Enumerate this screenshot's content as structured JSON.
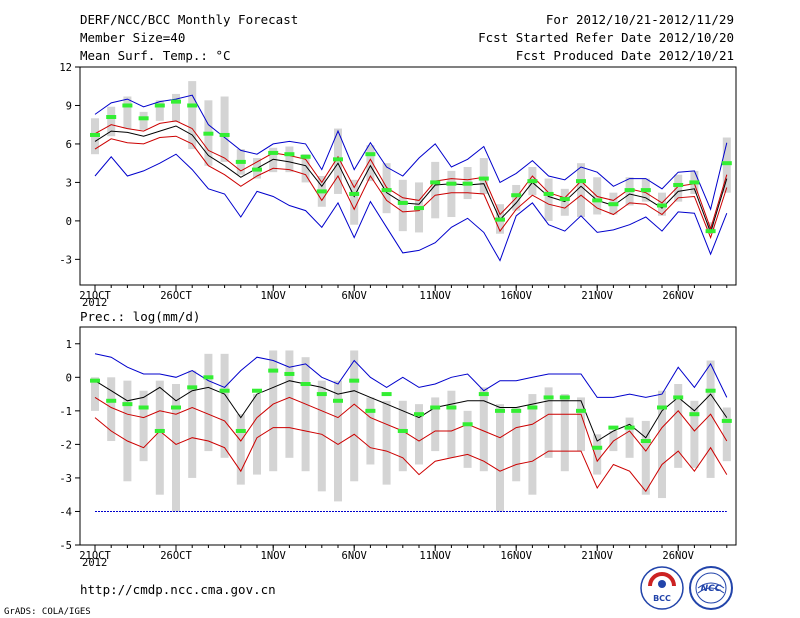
{
  "header": {
    "title": "DERF/NCC/BCC Monthly Forecast",
    "member_size": "Member Size=40",
    "variable": "Mean Surf. Temp.: °C",
    "period": "For 2012/10/21-2012/11/29",
    "started": "Fcst Started Refer Date 2012/10/20",
    "produced": "Fcst Produced Date 2012/10/21"
  },
  "footer": {
    "url": "http://cmdp.ncc.cma.gov.cn",
    "credit": "GrADS: COLA/IGES",
    "logo_bcc": "BCC",
    "logo_ncc": "NCC"
  },
  "chart_data": [
    {
      "type": "line",
      "title": "Mean Surf. Temp.: °C",
      "xlabel": "",
      "ylabel": "",
      "ylim": [
        -5,
        12
      ],
      "yticks": [
        12,
        9,
        6,
        3,
        0,
        -3
      ],
      "xtick_labels": [
        "21OCT",
        "26OCT",
        "1NOV",
        "6NOV",
        "11NOV",
        "16NOV",
        "21NOV",
        "26NOV"
      ],
      "xtick_days": [
        0,
        5,
        11,
        16,
        21,
        26,
        31,
        36
      ],
      "year_label": "2012",
      "x_days": [
        0,
        1,
        2,
        3,
        4,
        5,
        6,
        7,
        8,
        9,
        10,
        11,
        12,
        13,
        14,
        15,
        16,
        17,
        18,
        19,
        20,
        21,
        22,
        23,
        24,
        25,
        26,
        27,
        28,
        29,
        30,
        31,
        32,
        33,
        34,
        35,
        36,
        37,
        38,
        39
      ],
      "series": [
        {
          "name": "max",
          "color": "#0000cc",
          "values": [
            8.3,
            9.2,
            9.5,
            8.9,
            9.3,
            9.5,
            9.8,
            7.5,
            6.5,
            5.5,
            5.2,
            6,
            6.2,
            6,
            4,
            7,
            4,
            6.1,
            4.2,
            3.5,
            4.9,
            6,
            4.2,
            4.8,
            5.8,
            3,
            3.7,
            4.7,
            3.5,
            3.2,
            4.2,
            3.8,
            2.7,
            3.3,
            3.3,
            2.5,
            3.8,
            3.9,
            0.9,
            6.1
          ]
        },
        {
          "name": "upper",
          "color": "#cc0000",
          "values": [
            6.8,
            7.5,
            7.2,
            7,
            7.6,
            7.8,
            7.2,
            5.5,
            4.9,
            3.9,
            4.6,
            5.3,
            5.1,
            4.8,
            3,
            5,
            2.6,
            4.8,
            2.6,
            1.8,
            1.6,
            3.1,
            3.3,
            3.2,
            3.4,
            0.5,
            1.8,
            3.5,
            2.2,
            1.8,
            3.1,
            1.9,
            1.6,
            2.5,
            2.2,
            1.4,
            2.7,
            2.9,
            -0.6,
            3.6
          ]
        },
        {
          "name": "ensemble_mean",
          "color": "#000000",
          "values": [
            6.2,
            7,
            6.9,
            6.6,
            7,
            7.4,
            6.7,
            5.1,
            4.3,
            3.4,
            4.1,
            4.8,
            4.6,
            4.3,
            2.7,
            4.5,
            1.9,
            4.3,
            2.2,
            1.4,
            1.3,
            2.8,
            2.9,
            2.8,
            2.9,
            0.1,
            1.4,
            3,
            1.9,
            1.5,
            2.7,
            1.6,
            1.2,
            2.1,
            1.8,
            1,
            2.3,
            2.5,
            -0.9,
            3.3
          ]
        },
        {
          "name": "lower",
          "color": "#cc0000",
          "values": [
            5.6,
            6.4,
            6.1,
            6,
            6.5,
            6.6,
            6,
            4.3,
            3.6,
            2.7,
            3.5,
            4.1,
            4,
            3.6,
            1.6,
            3.5,
            0.9,
            3.5,
            1.6,
            0.7,
            0.8,
            2,
            2.2,
            2.2,
            2.1,
            -0.8,
            0.9,
            2,
            1.3,
            1,
            2,
            1,
            0.5,
            1.4,
            1.3,
            0.5,
            1.8,
            1.9,
            -1.3,
            2.6
          ]
        },
        {
          "name": "min",
          "color": "#0000cc",
          "values": [
            3.5,
            5,
            3.5,
            3.9,
            4.5,
            5.2,
            4,
            2.5,
            2.1,
            0.3,
            2.3,
            1.9,
            1.2,
            0.8,
            -0.5,
            1.4,
            -1.3,
            1.5,
            -0.5,
            -2.5,
            -2.3,
            -1.7,
            -0.5,
            0.2,
            -0.9,
            -3.1,
            0.4,
            1.4,
            -0.3,
            -0.8,
            0.4,
            -0.9,
            -0.7,
            -0.3,
            0.3,
            -0.8,
            0.7,
            0.6,
            -2.6,
            0.6
          ]
        },
        {
          "name": "green_marks",
          "color": "#33ee33",
          "values": [
            6.7,
            8.1,
            9,
            8,
            9,
            9.3,
            9,
            6.8,
            6.7,
            4.6,
            4,
            5.3,
            5.2,
            5,
            2.3,
            4.8,
            2.1,
            5.2,
            2.4,
            1.4,
            1,
            3,
            2.9,
            2.9,
            3.3,
            0.1,
            2,
            3.1,
            2.1,
            1.7,
            3.1,
            1.6,
            1.3,
            2.4,
            2.4,
            1.2,
            2.8,
            3,
            -0.8,
            4.5
          ]
        },
        {
          "name": "box_top",
          "color": "#d4d4d4",
          "values": [
            8,
            8.9,
            9.7,
            8.5,
            9.4,
            9.9,
            10.9,
            9.4,
            9.7,
            5.6,
            4.9,
            5.7,
            5.8,
            5.2,
            3.5,
            7.2,
            3.2,
            5.9,
            4.5,
            3.2,
            3,
            4.6,
            3.9,
            4.2,
            4.9,
            1.3,
            2.8,
            4.2,
            3.3,
            2.5,
            4.5,
            3.4,
            2.2,
            3.4,
            3.3,
            2.2,
            3.6,
            3.9,
            -0.1,
            6.5
          ]
        },
        {
          "name": "box_bottom",
          "color": "#d4d4d4",
          "values": [
            5.2,
            6.6,
            7.2,
            7.1,
            7.8,
            7.7,
            5.6,
            4.3,
            4.6,
            3.6,
            3.3,
            3.8,
            3.8,
            3,
            1.1,
            2.1,
            -0.3,
            3.1,
            0.6,
            -0.8,
            -0.9,
            0.2,
            0.3,
            1.7,
            2.1,
            -1,
            0.8,
            2,
            0,
            0.4,
            0.3,
            0.5,
            0.5,
            1.2,
            1.5,
            0.4,
            1.5,
            2.1,
            -0.9,
            2.2
          ]
        }
      ]
    },
    {
      "type": "line",
      "title": "Prec.: log(mm/d)",
      "xlabel": "",
      "ylabel": "",
      "ylim": [
        -5,
        1.5
      ],
      "yticks": [
        1,
        0,
        -1,
        -2,
        -3,
        -4,
        -5
      ],
      "xtick_labels": [
        "21OCT",
        "26OCT",
        "1NOV",
        "6NOV",
        "11NOV",
        "16NOV",
        "21NOV",
        "26NOV"
      ],
      "xtick_days": [
        0,
        5,
        11,
        16,
        21,
        26,
        31,
        36
      ],
      "year_label": "2012",
      "x_days": [
        0,
        1,
        2,
        3,
        4,
        5,
        6,
        7,
        8,
        9,
        10,
        11,
        12,
        13,
        14,
        15,
        16,
        17,
        18,
        19,
        20,
        21,
        22,
        23,
        24,
        25,
        26,
        27,
        28,
        29,
        30,
        31,
        32,
        33,
        34,
        35,
        36,
        37,
        38,
        39
      ],
      "series": [
        {
          "name": "max",
          "color": "#0000cc",
          "values": [
            0.7,
            0.6,
            0.3,
            0.1,
            0.1,
            0,
            0.2,
            -0.1,
            -0.3,
            0.2,
            0.6,
            0.5,
            0.3,
            0.4,
            0,
            -0.2,
            0.5,
            0,
            -0.3,
            0,
            -0.3,
            -0.2,
            0,
            0.1,
            -0.4,
            -0.1,
            -0.1,
            0,
            0.1,
            0.1,
            0.1,
            -0.6,
            -0.6,
            -0.5,
            -0.6,
            -0.5,
            0.3,
            -0.3,
            0.4,
            -0.6
          ]
        },
        {
          "name": "upper",
          "color": "#000000",
          "values": [
            -0.1,
            -0.4,
            -0.7,
            -0.6,
            -0.3,
            -0.7,
            -0.4,
            -0.3,
            -0.5,
            -1.2,
            -0.5,
            -0.3,
            -0.1,
            -0.2,
            -0.3,
            -0.5,
            -0.4,
            -0.6,
            -0.8,
            -1,
            -1.2,
            -0.9,
            -0.8,
            -0.7,
            -0.7,
            -0.9,
            -0.9,
            -0.8,
            -0.7,
            -0.7,
            -0.7,
            -1.9,
            -1.6,
            -1.4,
            -1.8,
            -1,
            -0.6,
            -1,
            -0.5,
            -1.2
          ]
        },
        {
          "name": "ensemble_mean",
          "color": "#cc0000",
          "values": [
            -0.6,
            -0.9,
            -1.1,
            -1.2,
            -1,
            -1.1,
            -0.9,
            -1.1,
            -1.3,
            -1.9,
            -1.2,
            -0.8,
            -0.6,
            -0.8,
            -1,
            -1.2,
            -0.8,
            -1.2,
            -1.4,
            -1.6,
            -1.9,
            -1.6,
            -1.6,
            -1.4,
            -1.6,
            -1.8,
            -1.5,
            -1.4,
            -1.1,
            -1.1,
            -1.1,
            -2.5,
            -1.9,
            -1.6,
            -2.2,
            -1.5,
            -1,
            -1.6,
            -1.1,
            -1.9
          ]
        },
        {
          "name": "lower",
          "color": "#cc0000",
          "values": [
            -1.2,
            -1.6,
            -1.9,
            -2.1,
            -1.6,
            -2,
            -1.8,
            -1.9,
            -2.1,
            -2.8,
            -1.8,
            -1.5,
            -1.5,
            -1.6,
            -1.7,
            -2,
            -1.7,
            -2.1,
            -2.2,
            -2.4,
            -2.9,
            -2.5,
            -2.4,
            -2.3,
            -2.5,
            -2.8,
            -2.6,
            -2.5,
            -2.2,
            -2.2,
            -2.2,
            -3.3,
            -2.6,
            -2.8,
            -3.4,
            -2.6,
            -2.2,
            -2.8,
            -2.1,
            -2.9
          ]
        },
        {
          "name": "min",
          "color": "#0000cc",
          "values": [
            -4,
            -4,
            -4,
            -4,
            -4,
            -4,
            -4,
            -4,
            -4,
            -4,
            -4,
            -4,
            -4,
            -4,
            -4,
            -4,
            -4,
            -4,
            -4,
            -4,
            -4,
            -4,
            -4,
            -4,
            -4,
            -4,
            -4,
            -4,
            -4,
            -4,
            -4,
            -4,
            -4,
            -4,
            -4,
            -4,
            -4,
            -4,
            -4,
            -4
          ]
        },
        {
          "name": "green_marks",
          "color": "#33ee33",
          "values": [
            -0.1,
            -0.7,
            -0.8,
            -0.9,
            -1.6,
            -0.9,
            -0.3,
            0,
            -0.4,
            -1.6,
            -0.4,
            0.2,
            0.1,
            -0.2,
            -0.5,
            -0.7,
            -0.1,
            -1,
            -0.5,
            -1.6,
            -1.1,
            -0.9,
            -0.9,
            -1.4,
            -0.5,
            -1,
            -1,
            -0.9,
            -0.6,
            -0.6,
            -1,
            -2.1,
            -1.5,
            -1.5,
            -1.9,
            -0.9,
            -0.6,
            -1.1,
            -0.4,
            -1.3
          ]
        },
        {
          "name": "box_top",
          "color": "#d4d4d4",
          "values": [
            0,
            0,
            -0.1,
            -0.4,
            -0.1,
            -0.2,
            0.2,
            0.7,
            0.7,
            -1.1,
            -0.5,
            0.8,
            0.8,
            0.6,
            -0.1,
            -0.1,
            0.8,
            -0.6,
            -0.7,
            -0.7,
            -0.8,
            -0.6,
            -0.4,
            -1,
            -0.3,
            -0.8,
            -0.9,
            -0.5,
            -0.3,
            -0.5,
            -0.6,
            -1.7,
            -1.6,
            -1.2,
            -1.3,
            -0.4,
            -0.2,
            -0.7,
            0.5,
            -0.9
          ]
        },
        {
          "name": "box_bottom",
          "color": "#d4d4d4",
          "values": [
            -1,
            -1.9,
            -3.1,
            -2.5,
            -3.5,
            -4,
            -3,
            -2.2,
            -2.4,
            -3.2,
            -2.9,
            -2.8,
            -2.4,
            -2.8,
            -3.4,
            -3.7,
            -3.1,
            -2.6,
            -3.2,
            -2.8,
            -2.6,
            -2.2,
            -2.4,
            -2.7,
            -2.8,
            -4,
            -3.1,
            -3.5,
            -2.4,
            -2.8,
            -2.2,
            -2.9,
            -2.2,
            -2.4,
            -3.5,
            -3.6,
            -2.7,
            -2.7,
            -3,
            -2.5
          ]
        }
      ]
    }
  ]
}
